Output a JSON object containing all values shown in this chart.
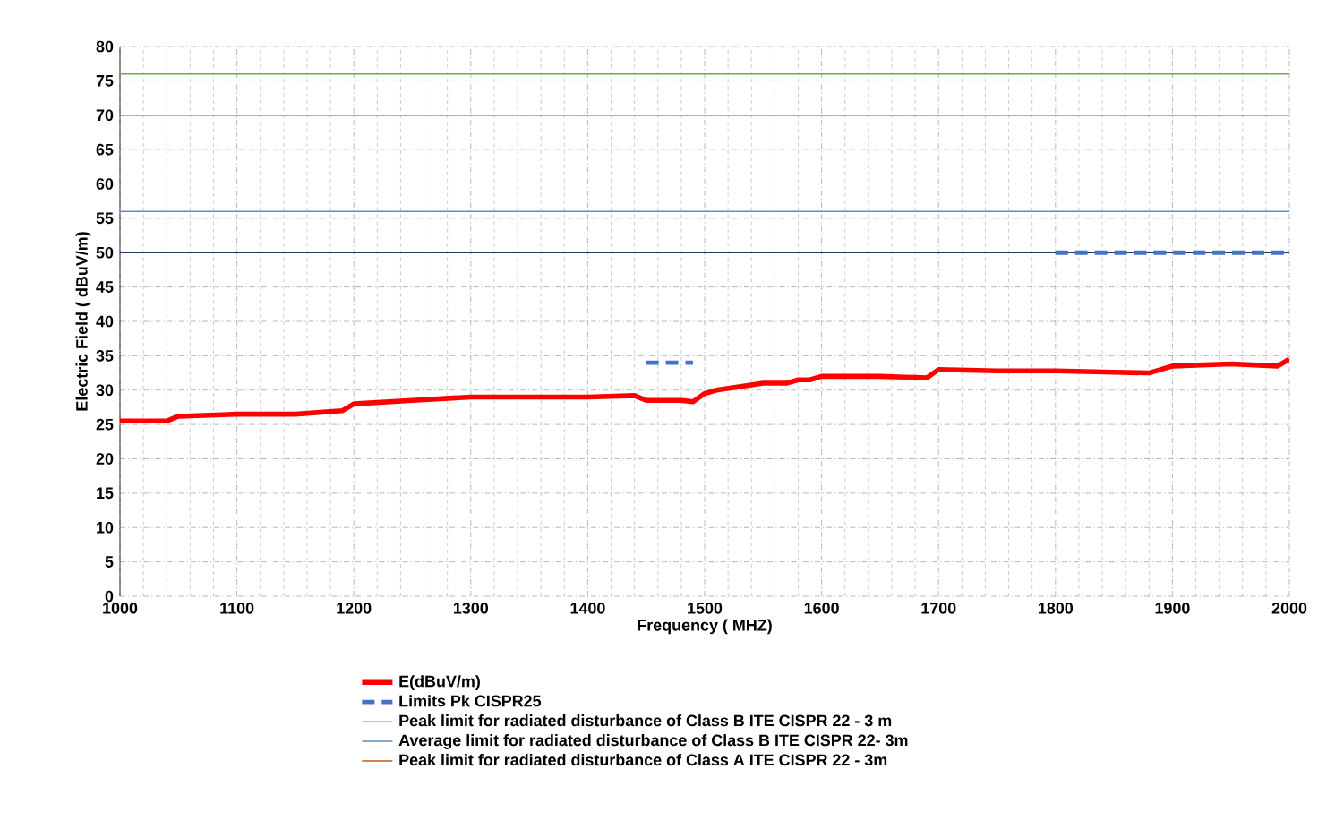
{
  "chart_data": {
    "type": "line",
    "xlabel": "Frequency ( MHZ)",
    "ylabel": "Electric Field ( dBuV/m)",
    "xlim": [
      1000,
      2000
    ],
    "xticks": [
      1000,
      1100,
      1200,
      1300,
      1400,
      1500,
      1600,
      1700,
      1800,
      1900,
      2000
    ],
    "ylim": [
      0,
      80
    ],
    "yticks": [
      0,
      5,
      10,
      15,
      20,
      25,
      30,
      35,
      40,
      45,
      50,
      55,
      60,
      65,
      70,
      75,
      80
    ],
    "grid": true,
    "legend": "bottom",
    "marker": "none",
    "series": [
      {
        "name": "E(dBuV/m)",
        "color": "#ff0000",
        "x": [
          1000,
          1040,
          1050,
          1100,
          1150,
          1190,
          1200,
          1250,
          1300,
          1350,
          1400,
          1440,
          1450,
          1480,
          1490,
          1500,
          1510,
          1550,
          1570,
          1580,
          1590,
          1600,
          1650,
          1690,
          1700,
          1750,
          1800,
          1850,
          1880,
          1900,
          1950,
          1990,
          2000
        ],
        "values": [
          25.5,
          25.5,
          26.2,
          26.5,
          26.5,
          27,
          28,
          28.5,
          29,
          29,
          29,
          29.2,
          28.5,
          28.5,
          28.3,
          29.5,
          30,
          31,
          31,
          31.5,
          31.5,
          32,
          32,
          31.8,
          33,
          32.8,
          32.8,
          32.6,
          32.5,
          33.5,
          33.8,
          33.5,
          34.5
        ]
      },
      {
        "name": "Limits Pk CISPR25",
        "color": "#4472c4",
        "line_style": "dashed",
        "x": [
          1450,
          1490
        ],
        "values": [
          34,
          34
        ]
      },
      {
        "color": "#4472c4",
        "line_style": "dashed",
        "x": [
          1800,
          2000
        ],
        "values": [
          50,
          50
        ]
      },
      {
        "name": "Peak limit for radiated disturbance of Class B ITE CISPR 22 - 3 m",
        "color": "#70ad47",
        "x": [
          1000,
          2000
        ],
        "values": [
          76,
          76
        ]
      },
      {
        "name": "Average limit for radiated disturbance of Class B ITE CISPR 22- 3m",
        "color": "#5b8fc9",
        "x": [
          1000,
          2000
        ],
        "values": [
          56,
          56
        ]
      },
      {
        "name": "Peak limit for radiated disturbance of Class A ITE CISPR 22 - 3m",
        "color": "#c55a11",
        "x": [
          1000,
          2000
        ],
        "values": [
          70,
          70
        ]
      }
    ],
    "ref_lines": [
      {
        "axis": "y",
        "value": 50,
        "color": "#1f3864"
      }
    ]
  }
}
